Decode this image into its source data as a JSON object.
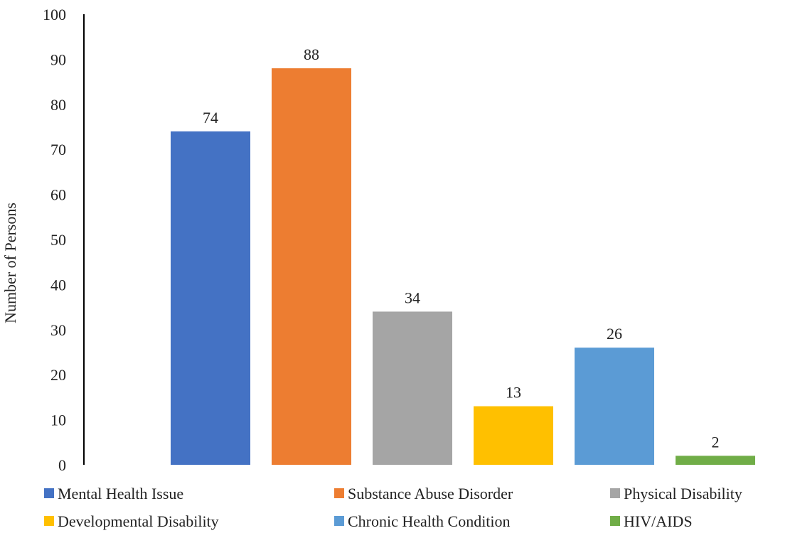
{
  "chart_data": {
    "type": "bar",
    "title": "",
    "xlabel": "",
    "ylabel": "Number of Persons",
    "ylim": [
      0,
      100
    ],
    "yticks": [
      0,
      10,
      20,
      30,
      40,
      50,
      60,
      70,
      80,
      90,
      100
    ],
    "grid": false,
    "legend_position": "bottom",
    "series": [
      {
        "name": "Mental Health Issue",
        "value": 74,
        "color": "#4472C4"
      },
      {
        "name": "Substance Abuse Disorder",
        "value": 88,
        "color": "#ED7D31"
      },
      {
        "name": "Physical Disability",
        "value": 34,
        "color": "#A5A5A5"
      },
      {
        "name": "Developmental Disability",
        "value": 13,
        "color": "#FFC000"
      },
      {
        "name": "Chronic Health Condition",
        "value": 26,
        "color": "#5B9BD5"
      },
      {
        "name": "HIV/AIDS",
        "value": 2,
        "color": "#70AD47"
      }
    ]
  }
}
